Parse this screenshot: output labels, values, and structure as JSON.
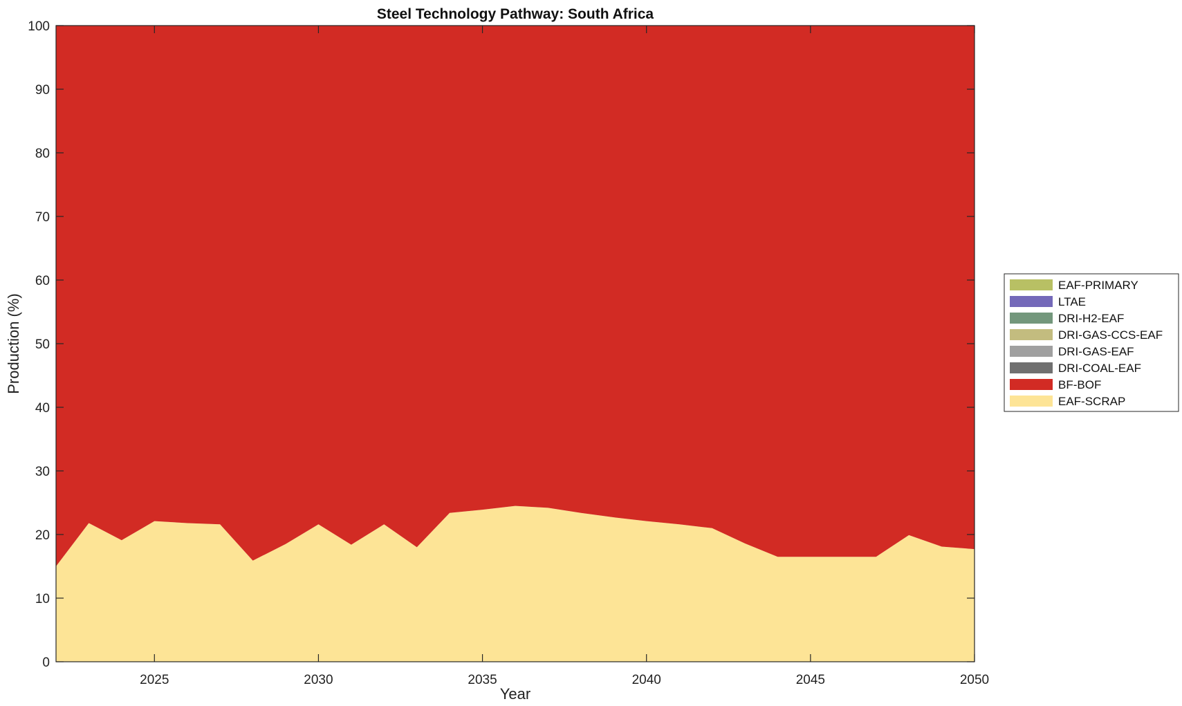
{
  "chart_data": {
    "type": "area",
    "stacked": true,
    "title": "Steel Technology Pathway: South Africa",
    "xlabel": "Year",
    "ylabel": "Production (%)",
    "xlim": [
      2022,
      2050
    ],
    "ylim": [
      0,
      100
    ],
    "xticks": [
      2025,
      2030,
      2035,
      2040,
      2045,
      2050
    ],
    "yticks": [
      0,
      10,
      20,
      30,
      40,
      50,
      60,
      70,
      80,
      90,
      100
    ],
    "grid": false,
    "legend_position": "right",
    "x": [
      2022,
      2023,
      2024,
      2025,
      2026,
      2027,
      2028,
      2029,
      2030,
      2031,
      2032,
      2033,
      2034,
      2035,
      2036,
      2037,
      2038,
      2039,
      2040,
      2041,
      2042,
      2043,
      2044,
      2045,
      2046,
      2047,
      2048,
      2049,
      2050
    ],
    "series": [
      {
        "name": "EAF-SCRAP",
        "color": "#fde496",
        "values": [
          15.0,
          21.8,
          19.1,
          22.1,
          21.8,
          21.6,
          15.9,
          18.5,
          21.6,
          18.4,
          21.6,
          18.0,
          23.4,
          23.9,
          24.5,
          24.2,
          23.4,
          22.7,
          22.1,
          21.6,
          21.0,
          18.6,
          16.5,
          16.5,
          16.5,
          16.5,
          19.9,
          18.1,
          17.7
        ]
      },
      {
        "name": "BF-BOF",
        "color": "#d22b24",
        "values": [
          85.0,
          78.2,
          80.9,
          77.9,
          78.2,
          78.4,
          84.1,
          81.5,
          78.4,
          81.6,
          78.4,
          82.0,
          76.6,
          76.1,
          75.5,
          75.8,
          76.6,
          77.3,
          77.9,
          78.4,
          79.0,
          81.4,
          83.5,
          83.5,
          83.5,
          83.5,
          80.1,
          81.9,
          82.3
        ]
      },
      {
        "name": "DRI-COAL-EAF",
        "color": "#707070",
        "values": [
          0,
          0,
          0,
          0,
          0,
          0,
          0,
          0,
          0,
          0,
          0,
          0,
          0,
          0,
          0,
          0,
          0,
          0,
          0,
          0,
          0,
          0,
          0,
          0,
          0,
          0,
          0,
          0,
          0
        ]
      },
      {
        "name": "DRI-GAS-EAF",
        "color": "#a0a0a0",
        "values": [
          0,
          0,
          0,
          0,
          0,
          0,
          0,
          0,
          0,
          0,
          0,
          0,
          0,
          0,
          0,
          0,
          0,
          0,
          0,
          0,
          0,
          0,
          0,
          0,
          0,
          0,
          0,
          0,
          0
        ]
      },
      {
        "name": "DRI-GAS-CCS-EAF",
        "color": "#c3bc7f",
        "values": [
          0,
          0,
          0,
          0,
          0,
          0,
          0,
          0,
          0,
          0,
          0,
          0,
          0,
          0,
          0,
          0,
          0,
          0,
          0,
          0,
          0,
          0,
          0,
          0,
          0,
          0,
          0,
          0,
          0
        ]
      },
      {
        "name": "DRI-H2-EAF",
        "color": "#73977c",
        "values": [
          0,
          0,
          0,
          0,
          0,
          0,
          0,
          0,
          0,
          0,
          0,
          0,
          0,
          0,
          0,
          0,
          0,
          0,
          0,
          0,
          0,
          0,
          0,
          0,
          0,
          0,
          0,
          0,
          0
        ]
      },
      {
        "name": "LTAE",
        "color": "#7469b9",
        "values": [
          0,
          0,
          0,
          0,
          0,
          0,
          0,
          0,
          0,
          0,
          0,
          0,
          0,
          0,
          0,
          0,
          0,
          0,
          0,
          0,
          0,
          0,
          0,
          0,
          0,
          0,
          0,
          0,
          0
        ]
      },
      {
        "name": "EAF-PRIMARY",
        "color": "#b8c064",
        "values": [
          0,
          0,
          0,
          0,
          0,
          0,
          0,
          0,
          0,
          0,
          0,
          0,
          0,
          0,
          0,
          0,
          0,
          0,
          0,
          0,
          0,
          0,
          0,
          0,
          0,
          0,
          0,
          0,
          0
        ]
      }
    ],
    "legend_order": [
      "EAF-PRIMARY",
      "LTAE",
      "DRI-H2-EAF",
      "DRI-GAS-CCS-EAF",
      "DRI-GAS-EAF",
      "DRI-COAL-EAF",
      "BF-BOF",
      "EAF-SCRAP"
    ]
  }
}
